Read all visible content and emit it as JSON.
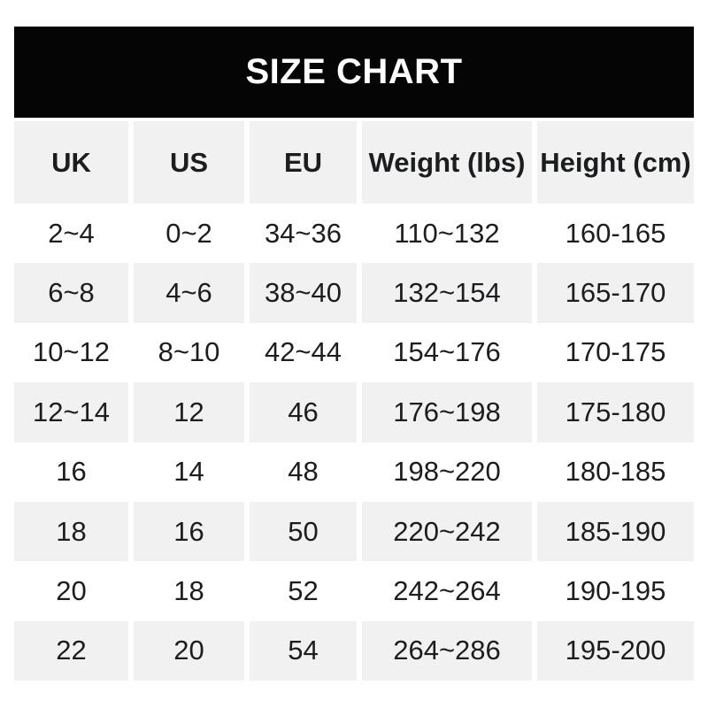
{
  "banner": {
    "title": "SIZE CHART"
  },
  "table": {
    "headers": [
      "UK",
      "US",
      "EU",
      "Weight (lbs)",
      "Height (cm)"
    ],
    "rows": [
      [
        "2~4",
        "0~2",
        "34~36",
        "110~132",
        "160-165"
      ],
      [
        "6~8",
        "4~6",
        "38~40",
        "132~154",
        "165-170"
      ],
      [
        "10~12",
        "8~10",
        "42~44",
        "154~176",
        "170-175"
      ],
      [
        "12~14",
        "12",
        "46",
        "176~198",
        "175-180"
      ],
      [
        "16",
        "14",
        "48",
        "198~220",
        "180-185"
      ],
      [
        "18",
        "16",
        "50",
        "220~242",
        "185-190"
      ],
      [
        "20",
        "18",
        "52",
        "242~264",
        "190-195"
      ],
      [
        "22",
        "20",
        "54",
        "264~286",
        "195-200"
      ]
    ]
  },
  "colors": {
    "page_bg": "#ffffff",
    "banner_bg": "#050505",
    "banner_text": "#ffffff",
    "row_bg": "#ffffff",
    "alt_row_bg": "#f1f1f1",
    "text": "#1b1d1f"
  }
}
